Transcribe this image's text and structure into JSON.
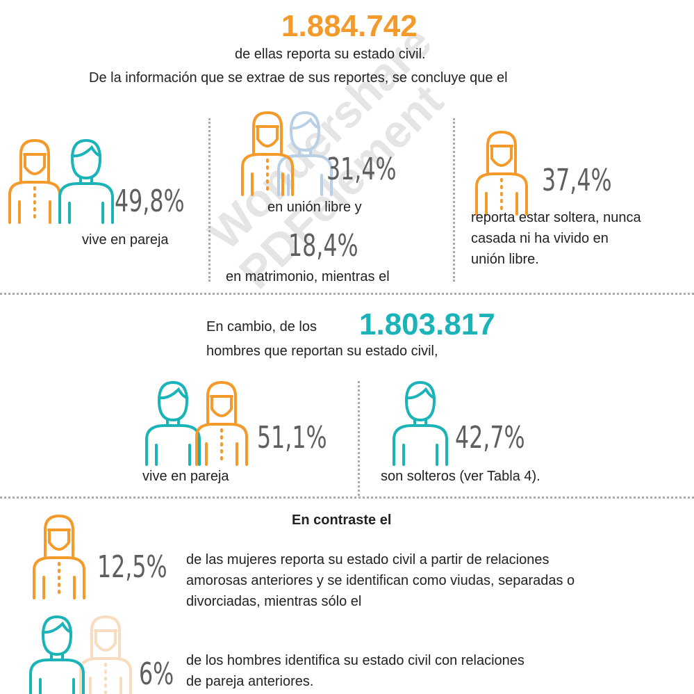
{
  "header": {
    "women_total": "1.884.742",
    "line1": "de ellas reporta su estado civil.",
    "line2": "De la información que se extrae de sus reportes, se concluye que el"
  },
  "women": {
    "couple": {
      "percent": "49,8%",
      "label": "vive en pareja"
    },
    "union": {
      "percent": "31,4%",
      "label": "en unión libre y"
    },
    "married": {
      "percent": "18,4%",
      "label": "en matrimonio, mientras el"
    },
    "single": {
      "percent": "37,4%",
      "lines": [
        "reporta estar soltera, nunca",
        "casada ni ha vivido en",
        "unión libre."
      ]
    }
  },
  "men": {
    "intro": "En cambio, de los",
    "total": "1.803.817",
    "intro2": "hombres que reportan su estado civil,",
    "couple": {
      "percent": "51,1%",
      "label": "vive en pareja"
    },
    "single": {
      "percent": "42,7%",
      "label": "son solteros (ver Tabla 4)."
    }
  },
  "contrast": {
    "title": "En contraste el",
    "women": {
      "percent": "12,5%",
      "lines": [
        "de las mujeres reporta su estado civil a partir de relaciones",
        "amorosas anteriores y se identifican como viudas, separadas o",
        "divorciadas, mientras sólo el"
      ]
    },
    "men": {
      "percent": "6%",
      "lines": [
        "de los hombres identifica su estado civil con relaciones",
        "de pareja anteriores."
      ]
    }
  },
  "watermark": {
    "line1": "Wondershare",
    "line2": "PDFelement"
  }
}
